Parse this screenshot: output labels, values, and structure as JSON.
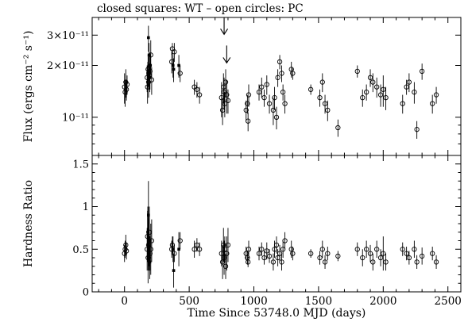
{
  "title": "closed squares: WT – open circles: PC",
  "chart_data": [
    {
      "type": "scatter",
      "ylabel": "Flux (ergs cm⁻² s⁻¹)",
      "xlabel": "",
      "xlim": [
        -250,
        2600
      ],
      "ylim": [
        6e-12,
        3.8e-11
      ],
      "yscale": "log",
      "xticks": [
        0,
        500,
        1000,
        1500,
        2000,
        2500
      ],
      "ytick_labels": [
        {
          "value": 1e-11,
          "label": "10⁻¹¹"
        },
        {
          "value": 2e-11,
          "label": "2×10⁻¹¹"
        },
        {
          "value": 3e-11,
          "label": "3×10⁻¹¹"
        }
      ],
      "series": [
        {
          "marker": "closed-square",
          "points": [
            [
              185,
              2.9e-11,
              5e-12
            ],
            [
              190,
              2.3e-11,
              4e-12
            ],
            [
              188,
              2e-11,
              2.5e-12
            ],
            [
              180,
              1.8e-11,
              3e-12
            ],
            [
              195,
              1.7e-11,
              3e-12
            ],
            [
              200,
              2e-11,
              3e-12
            ],
            [
              375,
              2e-11,
              3e-12
            ],
            [
              380,
              1.9e-11,
              3e-12
            ],
            [
              420,
              2e-11,
              3e-12
            ]
          ]
        },
        {
          "marker": "open-circle",
          "points": [
            [
              0,
              1.5e-11,
              3e-12
            ],
            [
              5,
              1.4e-11,
              2.5e-12
            ],
            [
              10,
              1.6e-11,
              3e-12
            ],
            [
              15,
              1.45e-11,
              2e-12
            ],
            [
              20,
              1.55e-11,
              2e-12
            ],
            [
              175,
              1.7e-11,
              3e-12
            ],
            [
              178,
              1.5e-11,
              3e-12
            ],
            [
              182,
              1.9e-11,
              4e-12
            ],
            [
              186,
              1.6e-11,
              3e-12
            ],
            [
              192,
              1.75e-11,
              3e-12
            ],
            [
              197,
              1.85e-11,
              4e-12
            ],
            [
              203,
              2.3e-11,
              5e-12
            ],
            [
              210,
              1.65e-11,
              3e-12
            ],
            [
              365,
              2.1e-11,
              3e-12
            ],
            [
              370,
              2.5e-11,
              2e-12
            ],
            [
              385,
              2.4e-11,
              3e-12
            ],
            [
              430,
              1.8e-11,
              2e-12
            ],
            [
              540,
              1.5e-11,
              1.5e-12
            ],
            [
              560,
              1.45e-11,
              1.5e-12
            ],
            [
              580,
              1.35e-11,
              1.5e-12
            ],
            [
              750,
              1.3e-11,
              3e-12
            ],
            [
              758,
              1.1e-11,
              2e-12
            ],
            [
              765,
              1.5e-11,
              3e-12
            ],
            [
              770,
              1.4e-11,
              3e-12
            ],
            [
              775,
              1.2e-11,
              2e-12
            ],
            [
              782,
              1.6e-11,
              3e-12
            ],
            [
              790,
              1.35e-11,
              3e-12
            ],
            [
              800,
              1.25e-11,
              2e-12
            ],
            [
              940,
              1.1e-11,
              1.5e-12
            ],
            [
              950,
              1.2e-11,
              1.5e-12
            ],
            [
              955,
              9.5e-12,
              1.2e-12
            ],
            [
              960,
              1.35e-11,
              2e-12
            ],
            [
              1040,
              1.4e-11,
              1.5e-12
            ],
            [
              1060,
              1.5e-11,
              2e-12
            ],
            [
              1080,
              1.3e-11,
              1.5e-12
            ],
            [
              1100,
              1.55e-11,
              2e-12
            ],
            [
              1120,
              1.2e-11,
              1.5e-12
            ],
            [
              1150,
              1.1e-11,
              2e-12
            ],
            [
              1160,
              1.3e-11,
              2e-12
            ],
            [
              1175,
              1e-11,
              1.5e-12
            ],
            [
              1185,
              1.7e-11,
              2e-12
            ],
            [
              1200,
              2.1e-11,
              2e-12
            ],
            [
              1215,
              1.8e-11,
              2e-12
            ],
            [
              1225,
              1.4e-11,
              1.5e-12
            ],
            [
              1240,
              1.2e-11,
              1.5e-12
            ],
            [
              1290,
              1.9e-11,
              2e-12
            ],
            [
              1300,
              1.8e-11,
              1.5e-12
            ],
            [
              1440,
              1.45e-11,
              1e-12
            ],
            [
              1510,
              1.3e-11,
              1.5e-12
            ],
            [
              1530,
              1.6e-11,
              2e-12
            ],
            [
              1550,
              1.2e-11,
              1.5e-12
            ],
            [
              1570,
              1.1e-11,
              1.5e-12
            ],
            [
              1650,
              8.7e-12,
              1e-12
            ],
            [
              1800,
              1.85e-11,
              1.5e-12
            ],
            [
              1840,
              1.3e-11,
              1.5e-12
            ],
            [
              1870,
              1.4e-11,
              1.5e-12
            ],
            [
              1900,
              1.7e-11,
              2e-12
            ],
            [
              1920,
              1.6e-11,
              2e-12
            ],
            [
              1950,
              1.5e-11,
              2e-12
            ],
            [
              1980,
              1.35e-11,
              2e-12
            ],
            [
              2000,
              1.45e-11,
              3e-12
            ],
            [
              2020,
              1.3e-11,
              2e-12
            ],
            [
              2150,
              1.2e-11,
              1.5e-12
            ],
            [
              2180,
              1.5e-11,
              1.5e-12
            ],
            [
              2200,
              1.6e-11,
              2e-12
            ],
            [
              2240,
              1.4e-11,
              2e-12
            ],
            [
              2260,
              8.5e-12,
              1e-12
            ],
            [
              2300,
              1.85e-11,
              2e-12
            ],
            [
              2380,
              1.2e-11,
              1.5e-12
            ],
            [
              2410,
              1.35e-11,
              1.5e-12
            ]
          ]
        },
        {
          "marker": "upper-limit-arrow",
          "points": [
            [
              770,
              3.3e-11
            ],
            [
              790,
              2.25e-11
            ]
          ]
        }
      ]
    },
    {
      "type": "scatter",
      "ylabel": "Hardness Ratio",
      "xlabel": "Time Since 53748.0 MJD (days)",
      "xlim": [
        -250,
        2600
      ],
      "ylim": [
        0,
        1.6
      ],
      "yscale": "linear",
      "xticks": [
        0,
        500,
        1000,
        1500,
        2000,
        2500
      ],
      "ytick_labels": [
        {
          "value": 0,
          "label": "0"
        },
        {
          "value": 0.5,
          "label": "0.5"
        },
        {
          "value": 1,
          "label": "1"
        },
        {
          "value": 1.5,
          "label": "1.5"
        }
      ],
      "series": [
        {
          "marker": "closed-square",
          "points": [
            [
              185,
              0.9,
              0.4
            ],
            [
              190,
              0.6,
              0.3
            ],
            [
              188,
              0.45,
              0.2
            ],
            [
              180,
              0.7,
              0.3
            ],
            [
              195,
              0.35,
              0.2
            ],
            [
              375,
              0.5,
              0.15
            ],
            [
              380,
              0.25,
              0.2
            ],
            [
              420,
              0.5,
              0.2
            ]
          ]
        },
        {
          "marker": "open-circle",
          "points": [
            [
              0,
              0.45,
              0.1
            ],
            [
              5,
              0.5,
              0.1
            ],
            [
              10,
              0.55,
              0.12
            ],
            [
              15,
              0.48,
              0.1
            ],
            [
              175,
              0.5,
              0.25
            ],
            [
              178,
              0.65,
              0.3
            ],
            [
              182,
              0.4,
              0.3
            ],
            [
              186,
              0.55,
              0.3
            ],
            [
              192,
              0.7,
              0.3
            ],
            [
              197,
              0.45,
              0.2
            ],
            [
              203,
              0.5,
              0.3
            ],
            [
              210,
              0.6,
              0.25
            ],
            [
              365,
              0.5,
              0.1
            ],
            [
              370,
              0.55,
              0.1
            ],
            [
              385,
              0.45,
              0.1
            ],
            [
              430,
              0.6,
              0.1
            ],
            [
              540,
              0.5,
              0.1
            ],
            [
              560,
              0.55,
              0.08
            ],
            [
              580,
              0.5,
              0.08
            ],
            [
              750,
              0.45,
              0.15
            ],
            [
              758,
              0.35,
              0.2
            ],
            [
              765,
              0.55,
              0.2
            ],
            [
              770,
              0.4,
              0.2
            ],
            [
              775,
              0.5,
              0.15
            ],
            [
              782,
              0.3,
              0.15
            ],
            [
              790,
              0.45,
              0.2
            ],
            [
              800,
              0.55,
              0.2
            ],
            [
              940,
              0.45,
              0.08
            ],
            [
              950,
              0.4,
              0.08
            ],
            [
              955,
              0.35,
              0.06
            ],
            [
              960,
              0.5,
              0.1
            ],
            [
              1040,
              0.45,
              0.08
            ],
            [
              1060,
              0.5,
              0.08
            ],
            [
              1080,
              0.4,
              0.08
            ],
            [
              1100,
              0.48,
              0.1
            ],
            [
              1120,
              0.42,
              0.08
            ],
            [
              1150,
              0.35,
              0.1
            ],
            [
              1160,
              0.5,
              0.1
            ],
            [
              1175,
              0.55,
              0.1
            ],
            [
              1185,
              0.4,
              0.1
            ],
            [
              1200,
              0.45,
              0.1
            ],
            [
              1215,
              0.35,
              0.1
            ],
            [
              1225,
              0.5,
              0.1
            ],
            [
              1240,
              0.6,
              0.1
            ],
            [
              1290,
              0.5,
              0.1
            ],
            [
              1300,
              0.45,
              0.08
            ],
            [
              1440,
              0.45,
              0.05
            ],
            [
              1510,
              0.4,
              0.08
            ],
            [
              1530,
              0.5,
              0.1
            ],
            [
              1550,
              0.35,
              0.08
            ],
            [
              1570,
              0.45,
              0.08
            ],
            [
              1650,
              0.42,
              0.06
            ],
            [
              1800,
              0.5,
              0.08
            ],
            [
              1840,
              0.4,
              0.1
            ],
            [
              1870,
              0.5,
              0.1
            ],
            [
              1900,
              0.45,
              0.1
            ],
            [
              1920,
              0.35,
              0.1
            ],
            [
              1950,
              0.5,
              0.1
            ],
            [
              1980,
              0.4,
              0.1
            ],
            [
              2000,
              0.45,
              0.2
            ],
            [
              2020,
              0.35,
              0.1
            ],
            [
              2150,
              0.5,
              0.08
            ],
            [
              2180,
              0.45,
              0.08
            ],
            [
              2200,
              0.4,
              0.08
            ],
            [
              2240,
              0.5,
              0.1
            ],
            [
              2260,
              0.35,
              0.08
            ],
            [
              2300,
              0.42,
              0.1
            ],
            [
              2380,
              0.45,
              0.08
            ],
            [
              2410,
              0.35,
              0.08
            ]
          ]
        }
      ]
    }
  ]
}
